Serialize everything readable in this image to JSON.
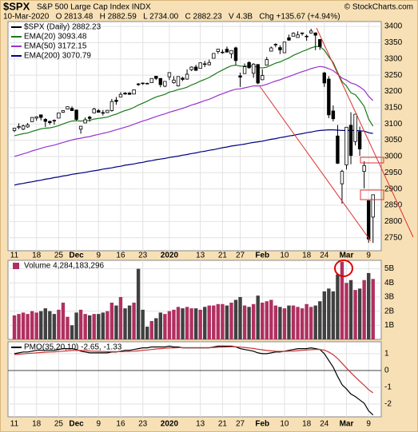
{
  "header": {
    "symbol": "$SPX",
    "name": "S&P 500 Large Cap Index INDX",
    "source": "© StockCharts.com",
    "quote": "10-Mar-2020   O 2813.48   H 2882.59   L 2734.00   C 2882.23   V 4.3B   Chg +135.67 (+4.94%)"
  },
  "chart_data": [
    {
      "type": "candlestick",
      "legend_title": "$SPX (Daily) 2882.23",
      "categories": [
        "11",
        null,
        null,
        null,
        null,
        "18",
        null,
        null,
        null,
        null,
        "25",
        null,
        null,
        null,
        "Dec",
        null,
        null,
        null,
        null,
        "9",
        null,
        null,
        null,
        null,
        "16",
        null,
        null,
        null,
        null,
        "23",
        null,
        null,
        null,
        null,
        null,
        "2020",
        null,
        null,
        null,
        null,
        null,
        null,
        "13",
        null,
        null,
        null,
        null,
        "21",
        null,
        null,
        null,
        "27",
        null,
        null,
        null,
        null,
        "Feb",
        null,
        null,
        null,
        null,
        "10",
        null,
        null,
        null,
        null,
        "18",
        null,
        null,
        null,
        "24",
        null,
        null,
        null,
        null,
        "Mar",
        null,
        null,
        null,
        null,
        "9",
        null
      ],
      "open": [
        3080,
        3089,
        3084,
        3091,
        3107,
        3118,
        3128,
        3114,
        3108,
        3111,
        3118,
        3136,
        3146,
        3148,
        3143,
        3084,
        3103,
        3121,
        3134,
        3141,
        3135,
        3135,
        3141,
        3173,
        3183,
        3195,
        3195,
        3192,
        3223,
        3226,
        3225,
        3227,
        3247,
        3240,
        3216,
        3245,
        3227,
        3217,
        3241,
        3238,
        3267,
        3275,
        3271,
        3285,
        3282,
        3302,
        3323,
        3321,
        3330,
        3316,
        3334,
        3248,
        3255,
        3289,
        3256,
        3283,
        3236,
        3281,
        3324,
        3344,
        3335,
        3319,
        3365,
        3370,
        3366,
        3379,
        3369,
        3380,
        3380,
        3360,
        3257,
        3238,
        3140,
        3063,
        2916,
        2974,
        3096,
        3046,
        3076,
        2954,
        2864,
        2813.48
      ],
      "high": [
        3088,
        3102,
        3098,
        3103,
        3121,
        3124,
        3128,
        3118,
        3110,
        3114,
        3134,
        3142,
        3154,
        3154,
        3144,
        3094,
        3120,
        3125,
        3150,
        3146,
        3143,
        3143,
        3177,
        3183,
        3198,
        3198,
        3198,
        3206,
        3226,
        3227,
        3227,
        3240,
        3248,
        3241,
        3232,
        3258,
        3247,
        3246,
        3245,
        3268,
        3277,
        3282,
        3289,
        3294,
        3298,
        3317,
        3330,
        3329,
        3338,
        3327,
        3338,
        3258,
        3286,
        3293,
        3287,
        3283,
        3268,
        3306,
        3338,
        3348,
        3342,
        3353,
        3375,
        3382,
        3385,
        3381,
        3375,
        3393,
        3382,
        3360,
        3260,
        3247,
        3157,
        3097,
        2959,
        3091,
        3136,
        3130,
        3092,
        2985,
        2864,
        2882.59
      ],
      "low": [
        3075,
        3084,
        3081,
        3088,
        3107,
        3110,
        3111,
        3091,
        3098,
        3098,
        3118,
        3134,
        3145,
        3140,
        3110,
        3070,
        3103,
        3107,
        3134,
        3135,
        3126,
        3134,
        3138,
        3159,
        3183,
        3190,
        3190,
        3192,
        3217,
        3220,
        3222,
        3227,
        3235,
        3213,
        3213,
        3235,
        3224,
        3215,
        3232,
        3236,
        3263,
        3263,
        3271,
        3275,
        3280,
        3302,
        3316,
        3316,
        3320,
        3302,
        3281,
        3214,
        3255,
        3270,
        3242,
        3222,
        3235,
        3281,
        3323,
        3336,
        3315,
        3319,
        3356,
        3371,
        3366,
        3372,
        3356,
        3378,
        3327,
        3328,
        3214,
        3118,
        3108,
        2977,
        2855,
        2960,
        2976,
        3034,
        3002,
        2902,
        2734.4,
        2734.0
      ],
      "close": [
        3087,
        3092,
        3094,
        3097,
        3120,
        3122,
        3120,
        3108,
        3104,
        3110,
        3134,
        3141,
        3153,
        3141,
        3114,
        3093,
        3113,
        3117,
        3146,
        3136,
        3133,
        3142,
        3169,
        3169,
        3191,
        3192,
        3191,
        3205,
        3221,
        3224,
        3223,
        3240,
        3240,
        3221,
        3231,
        3258,
        3235,
        3246,
        3237,
        3253,
        3275,
        3265,
        3288,
        3283,
        3289,
        3317,
        3330,
        3321,
        3321,
        3326,
        3295,
        3244,
        3276,
        3273,
        3284,
        3226,
        3249,
        3298,
        3334,
        3345,
        3328,
        3352,
        3358,
        3379,
        3374,
        3380,
        3370,
        3386,
        3373,
        3338,
        3226,
        3128,
        3116,
        2979,
        2954,
        3090,
        3003,
        3130,
        3023,
        2972,
        2746,
        2882.23
      ],
      "series": [
        {
          "name": "EMA(20) 3093.48",
          "color": "#1a7a1a",
          "values": [
            3064,
            3067,
            3070,
            3072,
            3077,
            3081,
            3085,
            3087,
            3088,
            3091,
            3095,
            3100,
            3105,
            3109,
            3110,
            3109,
            3110,
            3111,
            3115,
            3117,
            3119,
            3121,
            3126,
            3130,
            3136,
            3141,
            3145,
            3151,
            3158,
            3164,
            3170,
            3177,
            3183,
            3187,
            3191,
            3198,
            3201,
            3206,
            3209,
            3213,
            3220,
            3225,
            3232,
            3237,
            3243,
            3251,
            3259,
            3266,
            3273,
            3279,
            3281,
            3278,
            3278,
            3278,
            3279,
            3274,
            3272,
            3275,
            3281,
            3287,
            3291,
            3297,
            3303,
            3311,
            3317,
            3323,
            3328,
            3334,
            3338,
            3338,
            3327,
            3307,
            3289,
            3259,
            3230,
            3217,
            3196,
            3190,
            3173,
            3154,
            3115,
            3093.48
          ]
        },
        {
          "name": "EMA(50) 3172.15",
          "color": "#9933cc",
          "values": [
            3000,
            3004,
            3008,
            3012,
            3017,
            3021,
            3025,
            3029,
            3032,
            3035,
            3039,
            3043,
            3047,
            3051,
            3054,
            3056,
            3059,
            3061,
            3065,
            3068,
            3071,
            3074,
            3078,
            3082,
            3086,
            3090,
            3094,
            3099,
            3104,
            3109,
            3113,
            3118,
            3123,
            3127,
            3131,
            3136,
            3140,
            3144,
            3148,
            3153,
            3158,
            3162,
            3167,
            3172,
            3176,
            3182,
            3188,
            3193,
            3198,
            3203,
            3207,
            3208,
            3211,
            3214,
            3217,
            3217,
            3218,
            3222,
            3227,
            3232,
            3236,
            3241,
            3246,
            3251,
            3256,
            3261,
            3265,
            3270,
            3274,
            3277,
            3275,
            3270,
            3264,
            3253,
            3241,
            3235,
            3226,
            3222,
            3214,
            3204,
            3185,
            3172.15
          ]
        },
        {
          "name": "EMA(200) 3070.79",
          "color": "#000080",
          "values": [
            2912,
            2915,
            2917,
            2920,
            2922,
            2925,
            2927,
            2930,
            2932,
            2935,
            2937,
            2940,
            2942,
            2945,
            2947,
            2949,
            2951,
            2954,
            2956,
            2958,
            2961,
            2963,
            2965,
            2968,
            2970,
            2973,
            2975,
            2977,
            2980,
            2982,
            2985,
            2987,
            2990,
            2992,
            2994,
            2997,
            2999,
            3001,
            3004,
            3006,
            3009,
            3011,
            3014,
            3016,
            3019,
            3021,
            3024,
            3027,
            3029,
            3032,
            3034,
            3036,
            3038,
            3041,
            3043,
            3045,
            3047,
            3050,
            3053,
            3055,
            3058,
            3060,
            3063,
            3065,
            3068,
            3070,
            3073,
            3075,
            3078,
            3080,
            3081,
            3082,
            3082,
            3081,
            3080,
            3080,
            3080,
            3080,
            3079,
            3078,
            3073,
            3070.79
          ]
        }
      ],
      "ylim": [
        2710,
        3415
      ],
      "yticks": [
        2750,
        2800,
        2850,
        2900,
        2950,
        3000,
        3050,
        3100,
        3150,
        3200,
        3250,
        3300,
        3350,
        3400
      ],
      "grid": true
    },
    {
      "type": "bar",
      "legend_title": "Volume 4,284,183,296",
      "up_color": "#b03060",
      "down_color": "#404040",
      "values": [
        1.7,
        1.8,
        1.9,
        1.8,
        2.0,
        1.9,
        2.0,
        2.2,
        2.0,
        1.8,
        2.1,
        2.6,
        1.6,
        1.0,
        1.9,
        2.1,
        1.8,
        1.7,
        1.8,
        1.8,
        1.9,
        2.0,
        2.6,
        2.4,
        3.0,
        2.2,
        2.4,
        2.6,
        5.0,
        2.1,
        0.9,
        1.3,
        1.5,
        1.9,
        1.8,
        2.0,
        2.1,
        2.3,
        2.2,
        2.3,
        2.2,
        2.2,
        2.1,
        2.3,
        2.4,
        2.4,
        2.5,
        2.5,
        2.4,
        2.6,
        2.8,
        3.0,
        2.4,
        2.3,
        2.5,
        3.1,
        2.6,
        2.7,
        2.8,
        2.4,
        2.3,
        2.2,
        2.4,
        2.4,
        2.3,
        2.2,
        2.5,
        2.3,
        2.4,
        2.7,
        3.4,
        3.6,
        3.4,
        4.6,
        5.5,
        4.0,
        4.2,
        3.5,
        3.6,
        4.2,
        4.7,
        4.28
      ],
      "ylim": [
        0,
        5.6
      ],
      "yticks": [
        {
          "value": 1,
          "label": "1B"
        },
        {
          "value": 2,
          "label": "2B"
        },
        {
          "value": 3,
          "label": "3B"
        },
        {
          "value": 4,
          "label": "4B"
        },
        {
          "value": 5,
          "label": "5B"
        }
      ],
      "grid": true
    },
    {
      "type": "line",
      "legend_title": "PMO(35,20,10) -2.65, -1.33",
      "series": [
        {
          "name": "PMO",
          "color": "#000000",
          "values": [
            1.0,
            1.05,
            1.1,
            1.1,
            1.15,
            1.2,
            1.2,
            1.2,
            1.2,
            1.2,
            1.25,
            1.3,
            1.3,
            1.3,
            1.25,
            1.15,
            1.1,
            1.05,
            1.05,
            1.05,
            1.05,
            1.05,
            1.1,
            1.1,
            1.15,
            1.2,
            1.2,
            1.25,
            1.3,
            1.35,
            1.35,
            1.4,
            1.4,
            1.4,
            1.4,
            1.45,
            1.4,
            1.4,
            1.35,
            1.35,
            1.35,
            1.35,
            1.35,
            1.35,
            1.35,
            1.4,
            1.45,
            1.45,
            1.45,
            1.45,
            1.4,
            1.3,
            1.25,
            1.2,
            1.15,
            1.05,
            1.0,
            1.0,
            1.05,
            1.1,
            1.1,
            1.15,
            1.2,
            1.25,
            1.3,
            1.3,
            1.3,
            1.35,
            1.3,
            1.25,
            1.0,
            0.6,
            0.2,
            -0.35,
            -0.85,
            -1.1,
            -1.4,
            -1.55,
            -1.75,
            -1.95,
            -2.4,
            -2.65
          ]
        },
        {
          "name": "Signal",
          "color": "#cc3333",
          "values": [
            0.95,
            0.97,
            0.99,
            1.01,
            1.03,
            1.05,
            1.07,
            1.09,
            1.1,
            1.11,
            1.13,
            1.15,
            1.17,
            1.19,
            1.2,
            1.19,
            1.18,
            1.16,
            1.15,
            1.14,
            1.13,
            1.12,
            1.12,
            1.12,
            1.12,
            1.13,
            1.14,
            1.15,
            1.17,
            1.2,
            1.22,
            1.25,
            1.28,
            1.3,
            1.32,
            1.34,
            1.35,
            1.36,
            1.36,
            1.36,
            1.36,
            1.36,
            1.36,
            1.36,
            1.36,
            1.37,
            1.38,
            1.39,
            1.4,
            1.41,
            1.41,
            1.39,
            1.37,
            1.34,
            1.31,
            1.27,
            1.23,
            1.19,
            1.17,
            1.15,
            1.14,
            1.14,
            1.15,
            1.16,
            1.18,
            1.2,
            1.22,
            1.24,
            1.25,
            1.25,
            1.21,
            1.1,
            0.94,
            0.71,
            0.43,
            0.15,
            -0.13,
            -0.39,
            -0.64,
            -0.88,
            -1.15,
            -1.33
          ]
        }
      ],
      "ylim": [
        -2.76,
        1.71
      ],
      "yticks": [
        -2,
        -1,
        0,
        1
      ],
      "grid": true
    }
  ]
}
